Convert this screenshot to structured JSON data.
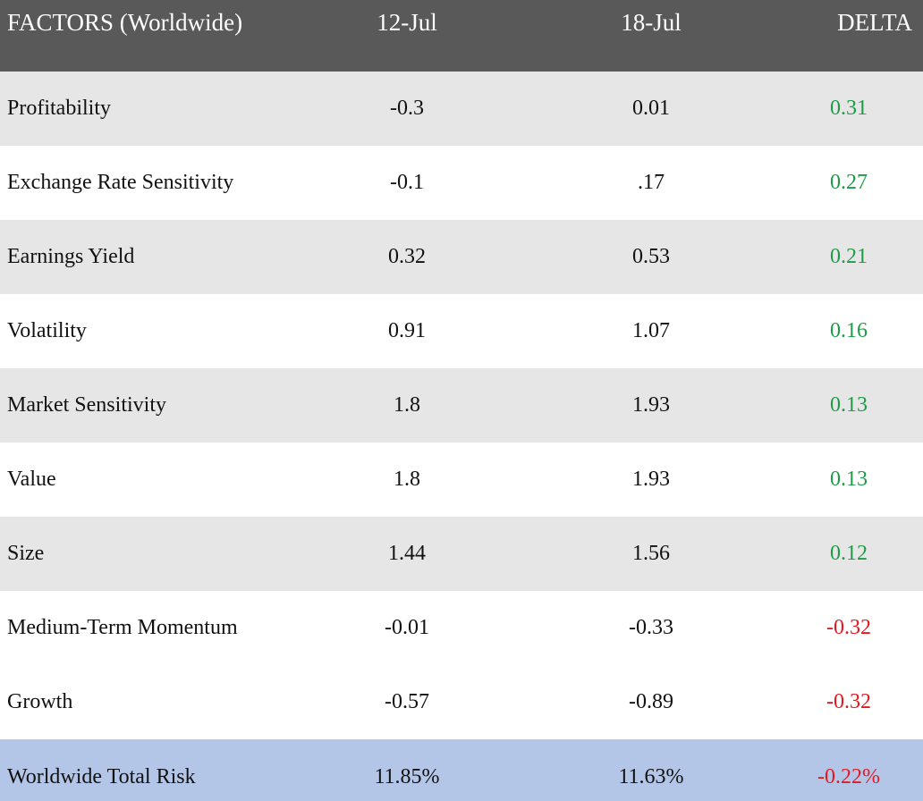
{
  "header": {
    "col_factor": "FACTORS (Worldwide)",
    "col_date1": "12-Jul",
    "col_date2": "18-Jul",
    "col_delta": "DELTA"
  },
  "colors": {
    "header_bg": "#595959",
    "row_shade": "#e6e6e6",
    "total_bg": "#b4c6e7",
    "positive": "#1e9b46",
    "negative": "#e3191f"
  },
  "rows": [
    {
      "factor": "Profitability",
      "d1": "-0.3",
      "d2": "0.01",
      "delta": "0.31"
    },
    {
      "factor": "Exchange Rate Sensitivity",
      "d1": "-0.1",
      "d2": ".17",
      "delta": "0.27"
    },
    {
      "factor": "Earnings Yield",
      "d1": "0.32",
      "d2": "0.53",
      "delta": "0.21"
    },
    {
      "factor": "Volatility",
      "d1": "0.91",
      "d2": "1.07",
      "delta": "0.16"
    },
    {
      "factor": "Market Sensitivity",
      "d1": "1.8",
      "d2": "1.93",
      "delta": "0.13"
    },
    {
      "factor": "Value",
      "d1": "1.8",
      "d2": "1.93",
      "delta": "0.13"
    },
    {
      "factor": "Size",
      "d1": "1.44",
      "d2": "1.56",
      "delta": "0.12"
    },
    {
      "factor": "Medium-Term Momentum",
      "d1": "-0.01",
      "d2": "-0.33",
      "delta": "-0.32"
    },
    {
      "factor": "Growth",
      "d1": "-0.57",
      "d2": "-0.89",
      "delta": "-0.32"
    }
  ],
  "total": {
    "factor": "Worldwide Total Risk",
    "d1": "11.85%",
    "d2": "11.63%",
    "delta": "-0.22%"
  }
}
